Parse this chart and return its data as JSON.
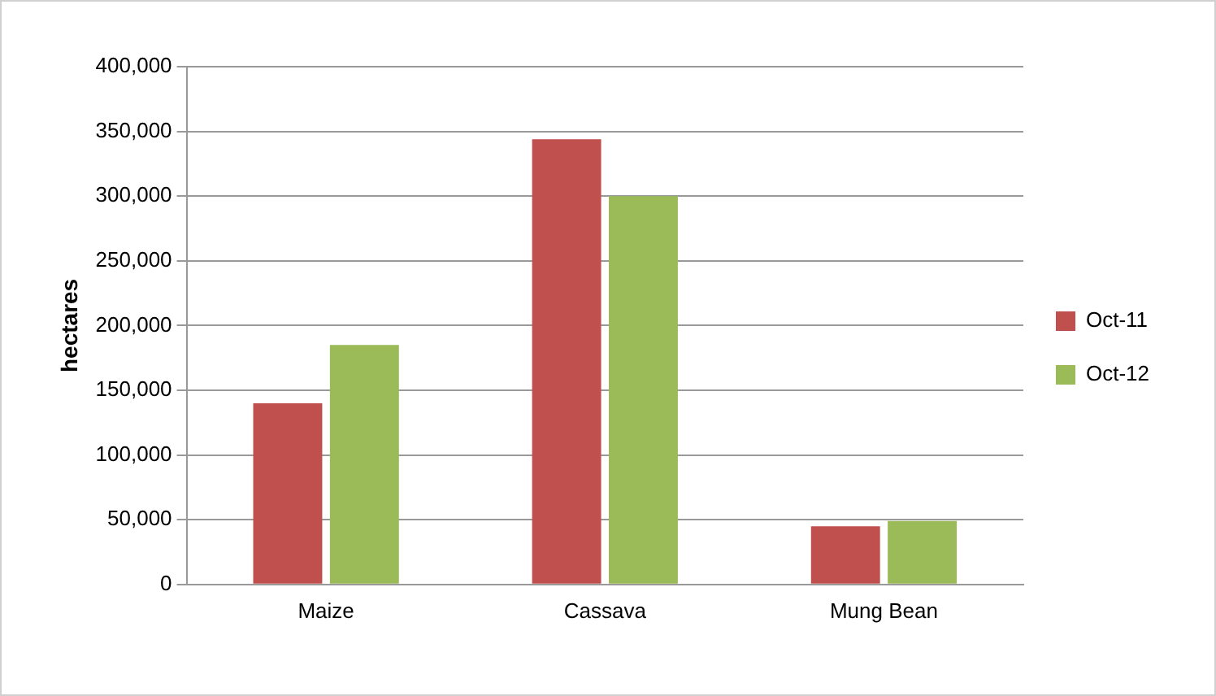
{
  "chart_data": {
    "type": "bar",
    "ylabel": "hectares",
    "categories": [
      "Maize",
      "Cassava",
      "Mung Bean"
    ],
    "series": [
      {
        "name": "Oct-11",
        "color": "#c0504d",
        "values": [
          140000,
          344000,
          45000
        ]
      },
      {
        "name": "Oct-12",
        "color": "#9bbb59",
        "values": [
          185000,
          300000,
          49000
        ]
      }
    ],
    "ylim": [
      0,
      400000
    ],
    "yticks": [
      0,
      {
        "value": 50000,
        "label": "50,000"
      },
      {
        "value": 100000,
        "label": "100,000"
      },
      {
        "value": 150000,
        "label": "150,000"
      },
      {
        "value": 200000,
        "label": "200,000"
      },
      {
        "value": 250000,
        "label": "250,000"
      },
      {
        "value": 300000,
        "label": "300,000"
      },
      {
        "value": 350000,
        "label": "350,000"
      },
      {
        "value": 400000,
        "label": "400,000"
      }
    ],
    "grid": "y",
    "legend": "right"
  }
}
